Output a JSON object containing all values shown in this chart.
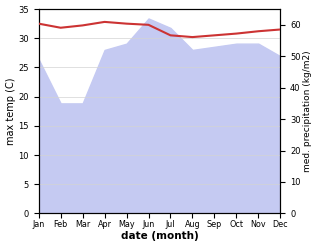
{
  "months": [
    "Jan",
    "Feb",
    "Mar",
    "Apr",
    "May",
    "Jun",
    "Jul",
    "Aug",
    "Sep",
    "Oct",
    "Nov",
    "Dec"
  ],
  "month_positions": [
    0,
    1,
    2,
    3,
    4,
    5,
    6,
    7,
    8,
    9,
    10,
    11
  ],
  "temp_max": [
    32.5,
    31.8,
    32.2,
    32.8,
    32.5,
    32.3,
    30.5,
    30.2,
    30.5,
    30.8,
    31.2,
    31.5
  ],
  "precipitation": [
    49,
    35,
    35,
    52,
    54,
    62,
    59,
    52,
    53,
    54,
    54,
    50
  ],
  "temp_ylim": [
    0,
    35
  ],
  "precip_ylim": [
    0,
    65
  ],
  "temp_color": "#cc3333",
  "precip_fill_color": "#c5caf2",
  "xlabel": "date (month)",
  "ylabel_left": "max temp (C)",
  "ylabel_right": "med. precipitation (kg/m2)",
  "temp_yticks": [
    0,
    5,
    10,
    15,
    20,
    25,
    30,
    35
  ],
  "precip_yticks": [
    0,
    10,
    20,
    30,
    40,
    50,
    60
  ],
  "background_color": "#ffffff"
}
